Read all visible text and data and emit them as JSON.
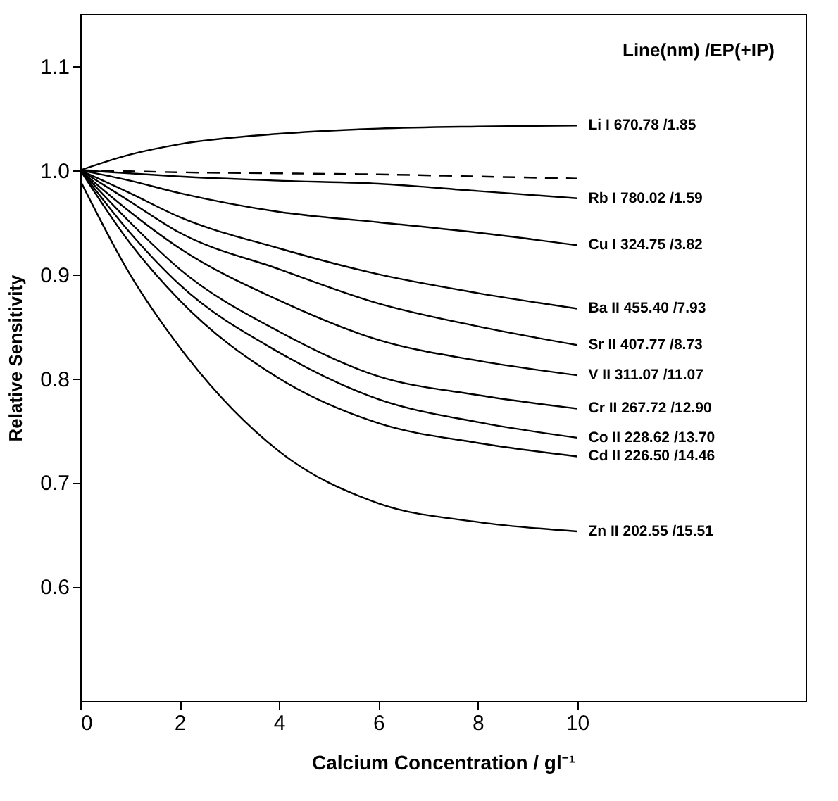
{
  "chart_data": {
    "type": "line",
    "xlabel": "Calcium Concentration / gl⁻¹",
    "ylabel": "Relative Sensitivity",
    "legend_title": "Line(nm) /EP(+IP)",
    "x": [
      0,
      1,
      2,
      4,
      6,
      8,
      10
    ],
    "xlim": [
      0,
      14.6
    ],
    "ylim": [
      0.49,
      1.15
    ],
    "xticks": [
      0,
      2,
      4,
      6,
      8,
      10
    ],
    "yticks": [
      {
        "value": 0.6,
        "label": "0.6"
      },
      {
        "value": 0.7,
        "label": "0.7"
      },
      {
        "value": 0.8,
        "label": "0.8"
      },
      {
        "value": 0.9,
        "label": "0.9"
      },
      {
        "value": 1.0,
        "label": "1.0"
      },
      {
        "value": 1.1,
        "label": "1.1"
      }
    ],
    "grid": false,
    "marker": "none",
    "series": [
      {
        "name": "Li I 670.78 /1.85",
        "color": "#000000",
        "values": [
          1.0,
          1.015,
          1.025,
          1.035,
          1.04,
          1.042,
          1.043
        ]
      },
      {
        "color": "#000000",
        "line_style": "dashed",
        "values": [
          1.0,
          0.999,
          0.998,
          0.997,
          0.996,
          0.994,
          0.992
        ]
      },
      {
        "name": "Rb I 780.02 /1.59",
        "color": "#000000",
        "values": [
          1.0,
          0.997,
          0.994,
          0.99,
          0.987,
          0.98,
          0.973
        ]
      },
      {
        "name": "Cu I 324.75 /3.82",
        "color": "#000000",
        "values": [
          1.0,
          0.99,
          0.978,
          0.96,
          0.95,
          0.94,
          0.928
        ]
      },
      {
        "name": "Ba II 455.40 /7.93",
        "color": "#000000",
        "values": [
          1.0,
          0.978,
          0.955,
          0.925,
          0.9,
          0.882,
          0.867
        ]
      },
      {
        "name": "Sr II 407.77 /8.73",
        "color": "#000000",
        "values": [
          1.0,
          0.97,
          0.94,
          0.905,
          0.872,
          0.85,
          0.832
        ]
      },
      {
        "name": "V II 311.07 /11.07",
        "color": "#000000",
        "values": [
          1.0,
          0.96,
          0.925,
          0.875,
          0.837,
          0.817,
          0.803
        ]
      },
      {
        "name": "Cr II 267.72 /12.90",
        "color": "#000000",
        "values": [
          1.0,
          0.95,
          0.905,
          0.845,
          0.802,
          0.784,
          0.771
        ]
      },
      {
        "name": "Co II 228.62 /13.70",
        "color": "#000000",
        "values": [
          1.0,
          0.94,
          0.89,
          0.825,
          0.78,
          0.758,
          0.743
        ]
      },
      {
        "name": "Cd II 226.50 /14.46",
        "color": "#000000",
        "values": [
          1.0,
          0.93,
          0.875,
          0.8,
          0.757,
          0.738,
          0.725
        ]
      },
      {
        "name": "Zn II 202.55 /15.51",
        "color": "#000000",
        "values": [
          0.99,
          0.9,
          0.83,
          0.73,
          0.68,
          0.662,
          0.653
        ]
      }
    ]
  }
}
